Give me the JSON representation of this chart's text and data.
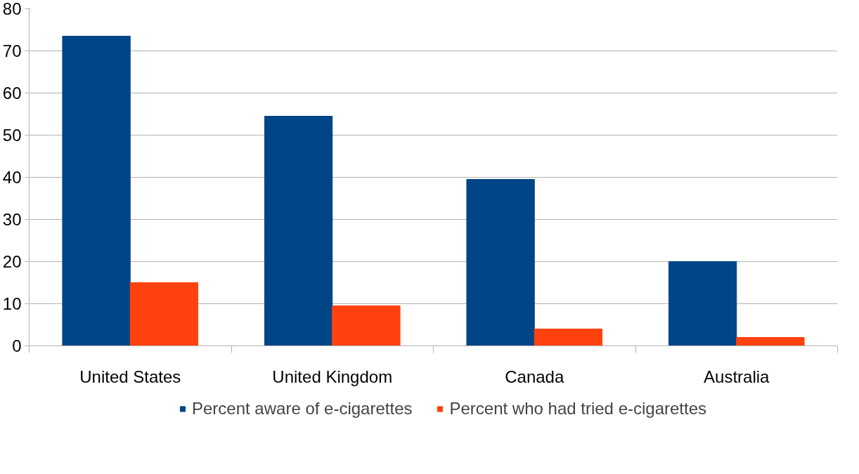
{
  "chart_data": {
    "type": "bar",
    "categories": [
      "United States",
      "United Kingdom",
      "Canada",
      "Australia"
    ],
    "series": [
      {
        "name": "Percent aware of e-cigarettes",
        "color": "#004586",
        "values": [
          73.5,
          54.5,
          39.5,
          20
        ]
      },
      {
        "name": "Percent who had tried e-cigarettes",
        "color": "#ff420e",
        "values": [
          15,
          9.5,
          4,
          2
        ]
      }
    ],
    "ylim": [
      0,
      80
    ],
    "yticks": [
      0,
      10,
      20,
      30,
      40,
      50,
      60,
      70,
      80
    ],
    "grid": "y",
    "legend": "bottom"
  }
}
